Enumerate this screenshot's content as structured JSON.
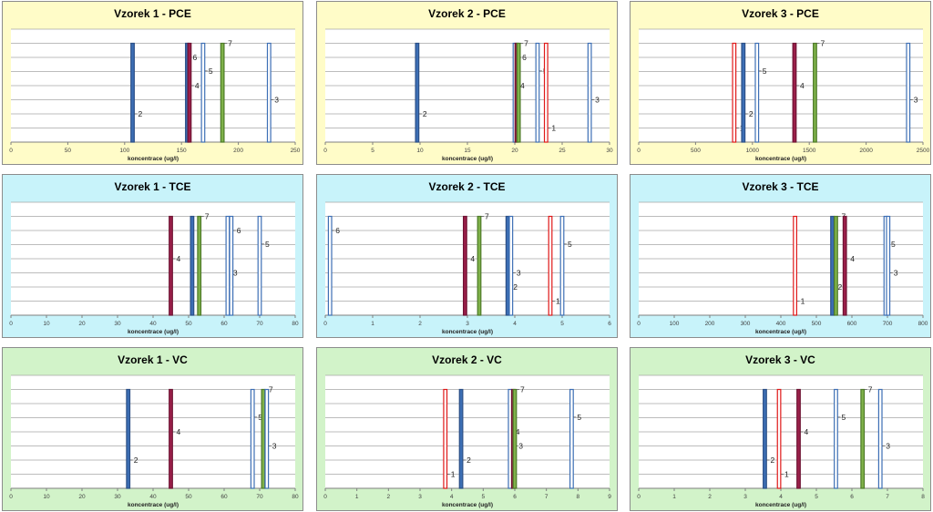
{
  "colors": {
    "pce_bg": "#fffcc8",
    "tce_bg": "#c8f3fa",
    "vc_bg": "#d2f3c9",
    "blue_fill": "#3d6fb5",
    "blue_outline": "#3d6fb5",
    "red_outline": "#e01818",
    "crimson_fill": "#9b1f4a",
    "green_fill": "#7fb14a"
  },
  "chart_data": [
    {
      "type": "bar",
      "title": "Vzorek 1 - PCE",
      "xlabel": "koncentrace (ug/l)",
      "ylabel": "",
      "xlim": [
        0,
        250
      ],
      "xticks": [
        0,
        50,
        100,
        150,
        200,
        250
      ],
      "bg": "pce",
      "bars": [
        {
          "label": "2",
          "x": 107,
          "style": "blue-fill",
          "label_pos": 0.25
        },
        {
          "label": "6",
          "x": 155,
          "style": "blue-fill",
          "label_pos": 0.75
        },
        {
          "label": "4",
          "x": 157,
          "style": "crimson-fill",
          "label_pos": 0.5
        },
        {
          "label": "5",
          "x": 169,
          "style": "blue-outline",
          "label_pos": 0.63
        },
        {
          "label": "7",
          "x": 186,
          "style": "green-fill",
          "label_pos": 0.875
        },
        {
          "label": "3",
          "x": 227,
          "style": "blue-outline",
          "label_pos": 0.375
        }
      ]
    },
    {
      "type": "bar",
      "title": "Vzorek 2 - PCE",
      "xlabel": "koncentrace (ug/l)",
      "ylabel": "",
      "xlim": [
        0,
        30
      ],
      "xticks": [
        0,
        5,
        10,
        15,
        20,
        25,
        30
      ],
      "bg": "pce",
      "bars": [
        {
          "label": "2",
          "x": 9.7,
          "style": "blue-fill",
          "label_pos": 0.25
        },
        {
          "label": "4",
          "x": 20.0,
          "style": "blue-outline",
          "label_pos": 0.5
        },
        {
          "label": "6",
          "x": 20.2,
          "style": "crimson-fill",
          "label_pos": 0.75
        },
        {
          "label": "7",
          "x": 20.4,
          "style": "green-fill",
          "label_pos": 0.875
        },
        {
          "label": "5",
          "x": 22.4,
          "style": "blue-outline",
          "label_pos": 0.63
        },
        {
          "label": "1",
          "x": 23.3,
          "style": "red-outline",
          "label_pos": 0.125
        },
        {
          "label": "3",
          "x": 27.9,
          "style": "blue-outline",
          "label_pos": 0.375
        }
      ]
    },
    {
      "type": "bar",
      "title": "Vzorek 3 - PCE",
      "xlabel": "koncentrace (ug/l)",
      "ylabel": "",
      "xlim": [
        0,
        2500
      ],
      "xticks": [
        0,
        500,
        1000,
        1500,
        2000,
        2500
      ],
      "bg": "pce",
      "bars": [
        {
          "label": "1",
          "x": 840,
          "style": "red-outline",
          "label_pos": 0.125
        },
        {
          "label": "2",
          "x": 920,
          "style": "blue-fill",
          "label_pos": 0.25
        },
        {
          "label": "5",
          "x": 1040,
          "style": "blue-outline",
          "label_pos": 0.63
        },
        {
          "label": "4",
          "x": 1370,
          "style": "crimson-fill",
          "label_pos": 0.5
        },
        {
          "label": "7",
          "x": 1550,
          "style": "green-fill",
          "label_pos": 0.875
        },
        {
          "label": "3",
          "x": 2370,
          "style": "blue-outline",
          "label_pos": 0.375
        }
      ]
    },
    {
      "type": "bar",
      "title": "Vzorek 1 - TCE",
      "xlabel": "koncentrace (ug/l)",
      "ylabel": "",
      "xlim": [
        0,
        80
      ],
      "xticks": [
        0,
        10,
        20,
        30,
        40,
        50,
        60,
        70,
        80
      ],
      "bg": "tce",
      "bars": [
        {
          "label": "4",
          "x": 45,
          "style": "crimson-fill",
          "label_pos": 0.5
        },
        {
          "label": "2",
          "x": 51,
          "style": "blue-fill",
          "label_pos": 0.25
        },
        {
          "label": "7",
          "x": 53,
          "style": "green-fill",
          "label_pos": 0.875
        },
        {
          "label": "3",
          "x": 61,
          "style": "blue-outline",
          "label_pos": 0.375
        },
        {
          "label": "6",
          "x": 62,
          "style": "blue-outline",
          "label_pos": 0.75
        },
        {
          "label": "5",
          "x": 70,
          "style": "blue-outline",
          "label_pos": 0.63
        }
      ]
    },
    {
      "type": "bar",
      "title": "Vzorek 2 - TCE",
      "xlabel": "koncentrace (ug/l)",
      "ylabel": "",
      "xlim": [
        0,
        6
      ],
      "xticks": [
        0,
        1,
        2,
        3,
        4,
        5,
        6
      ],
      "bg": "tce",
      "bars": [
        {
          "label": "6",
          "x": 0.1,
          "style": "blue-outline",
          "label_pos": 0.75
        },
        {
          "label": "4",
          "x": 2.95,
          "style": "crimson-fill",
          "label_pos": 0.5
        },
        {
          "label": "7",
          "x": 3.25,
          "style": "green-fill",
          "label_pos": 0.875
        },
        {
          "label": "2",
          "x": 3.85,
          "style": "blue-fill",
          "label_pos": 0.25
        },
        {
          "label": "3",
          "x": 3.92,
          "style": "blue-outline",
          "label_pos": 0.375
        },
        {
          "label": "1",
          "x": 4.75,
          "style": "red-outline",
          "label_pos": 0.125
        },
        {
          "label": "5",
          "x": 5.0,
          "style": "blue-outline",
          "label_pos": 0.63
        }
      ]
    },
    {
      "type": "bar",
      "title": "Vzorek 3 - TCE",
      "xlabel": "koncentrace (ug/l)",
      "ylabel": "",
      "xlim": [
        0,
        800
      ],
      "xticks": [
        0,
        100,
        200,
        300,
        400,
        500,
        600,
        700,
        800
      ],
      "bg": "tce",
      "bars": [
        {
          "label": "1",
          "x": 440,
          "style": "red-outline",
          "label_pos": 0.125
        },
        {
          "label": "2",
          "x": 545,
          "style": "blue-fill",
          "label_pos": 0.25
        },
        {
          "label": "7",
          "x": 555,
          "style": "green-fill",
          "label_pos": 0.875
        },
        {
          "label": "4",
          "x": 580,
          "style": "crimson-fill",
          "label_pos": 0.5
        },
        {
          "label": "5",
          "x": 695,
          "style": "blue-outline",
          "label_pos": 0.63
        },
        {
          "label": "3",
          "x": 702,
          "style": "blue-outline",
          "label_pos": 0.375
        }
      ]
    },
    {
      "type": "bar",
      "title": "Vzorek 1 - VC",
      "xlabel": "koncentrace (ug/l)",
      "ylabel": "",
      "xlim": [
        0,
        80
      ],
      "xticks": [
        0,
        10,
        20,
        30,
        40,
        50,
        60,
        70,
        80
      ],
      "bg": "vc",
      "bars": [
        {
          "label": "2",
          "x": 33,
          "style": "blue-fill",
          "label_pos": 0.25
        },
        {
          "label": "4",
          "x": 45,
          "style": "crimson-fill",
          "label_pos": 0.5
        },
        {
          "label": "5",
          "x": 68,
          "style": "blue-outline",
          "label_pos": 0.63
        },
        {
          "label": "7",
          "x": 71,
          "style": "green-fill",
          "label_pos": 0.875
        },
        {
          "label": "3",
          "x": 72,
          "style": "blue-outline",
          "label_pos": 0.375
        }
      ]
    },
    {
      "type": "bar",
      "title": "Vzorek 2 - VC",
      "xlabel": "koncentrace (ug/l)",
      "ylabel": "",
      "xlim": [
        0,
        9
      ],
      "xticks": [
        0,
        1,
        2,
        3,
        4,
        5,
        6,
        7,
        8,
        9
      ],
      "bg": "vc",
      "bars": [
        {
          "label": "1",
          "x": 3.8,
          "style": "red-outline",
          "label_pos": 0.125
        },
        {
          "label": "2",
          "x": 4.3,
          "style": "blue-fill",
          "label_pos": 0.25
        },
        {
          "label": "4",
          "x": 5.85,
          "style": "blue-outline",
          "label_pos": 0.5
        },
        {
          "label": "3",
          "x": 5.95,
          "style": "crimson-fill",
          "label_pos": 0.375
        },
        {
          "label": "7",
          "x": 6.0,
          "style": "green-fill",
          "label_pos": 0.875
        },
        {
          "label": "5",
          "x": 7.8,
          "style": "blue-outline",
          "label_pos": 0.63
        }
      ]
    },
    {
      "type": "bar",
      "title": "Vzorek 3 - VC",
      "xlabel": "koncentrace (ug/l)",
      "ylabel": "",
      "xlim": [
        0,
        8
      ],
      "xticks": [
        0,
        1,
        2,
        3,
        4,
        5,
        6,
        7,
        8
      ],
      "bg": "vc",
      "bars": [
        {
          "label": "2",
          "x": 3.55,
          "style": "blue-fill",
          "label_pos": 0.25
        },
        {
          "label": "1",
          "x": 3.95,
          "style": "red-outline",
          "label_pos": 0.125
        },
        {
          "label": "4",
          "x": 4.5,
          "style": "crimson-fill",
          "label_pos": 0.5
        },
        {
          "label": "5",
          "x": 5.55,
          "style": "blue-outline",
          "label_pos": 0.63
        },
        {
          "label": "7",
          "x": 6.3,
          "style": "green-fill",
          "label_pos": 0.875
        },
        {
          "label": "3",
          "x": 6.8,
          "style": "blue-outline",
          "label_pos": 0.375
        }
      ]
    }
  ]
}
